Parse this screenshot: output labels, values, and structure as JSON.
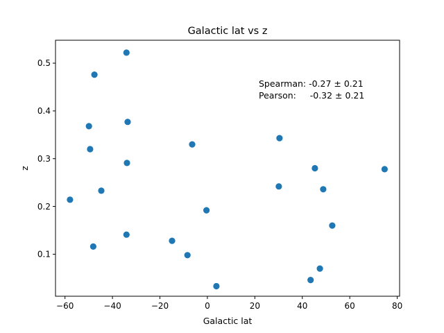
{
  "chart_data": {
    "type": "scatter",
    "title": "Galactic lat vs z",
    "xlabel": "Galactic lat",
    "ylabel": "z",
    "xlim": [
      -64,
      81
    ],
    "ylim": [
      0.012,
      0.548
    ],
    "xticks": [
      -60,
      -40,
      -20,
      0,
      20,
      40,
      60,
      80
    ],
    "xtick_labels": [
      "−60",
      "−40",
      "−20",
      "0",
      "20",
      "40",
      "60",
      "80"
    ],
    "yticks": [
      0.1,
      0.2,
      0.3,
      0.4,
      0.5
    ],
    "ytick_labels": [
      "0.1",
      "0.2",
      "0.3",
      "0.4",
      "0.5"
    ],
    "grid": false,
    "marker_color": "#1f77b4",
    "annotation": [
      "Spearman: -0.27 ± 0.21",
      "Pearson:     -0.32 ± 0.21"
    ],
    "points": [
      {
        "x": -34.1,
        "y": 0.522
      },
      {
        "x": -47.6,
        "y": 0.476
      },
      {
        "x": -33.6,
        "y": 0.377
      },
      {
        "x": -49.9,
        "y": 0.368
      },
      {
        "x": -49.4,
        "y": 0.32
      },
      {
        "x": -33.9,
        "y": 0.291
      },
      {
        "x": -6.4,
        "y": 0.33
      },
      {
        "x": 30.4,
        "y": 0.343
      },
      {
        "x": 45.3,
        "y": 0.28
      },
      {
        "x": 74.7,
        "y": 0.278
      },
      {
        "x": 30.1,
        "y": 0.242
      },
      {
        "x": 48.8,
        "y": 0.236
      },
      {
        "x": -44.7,
        "y": 0.233
      },
      {
        "x": -57.9,
        "y": 0.214
      },
      {
        "x": -0.4,
        "y": 0.192
      },
      {
        "x": 52.6,
        "y": 0.16
      },
      {
        "x": -34.1,
        "y": 0.141
      },
      {
        "x": -14.9,
        "y": 0.128
      },
      {
        "x": -48.1,
        "y": 0.116
      },
      {
        "x": -8.4,
        "y": 0.098
      },
      {
        "x": 47.4,
        "y": 0.07
      },
      {
        "x": 43.5,
        "y": 0.046
      },
      {
        "x": 3.8,
        "y": 0.033
      }
    ]
  }
}
